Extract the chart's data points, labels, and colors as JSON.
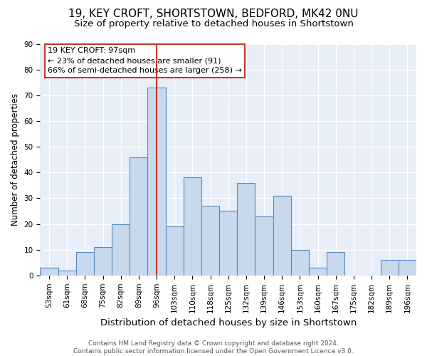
{
  "title1": "19, KEY CROFT, SHORTSTOWN, BEDFORD, MK42 0NU",
  "title2": "Size of property relative to detached houses in Shortstown",
  "xlabel": "Distribution of detached houses by size in Shortstown",
  "ylabel": "Number of detached properties",
  "categories": [
    "53sqm",
    "61sqm",
    "68sqm",
    "75sqm",
    "82sqm",
    "89sqm",
    "96sqm",
    "103sqm",
    "110sqm",
    "118sqm",
    "125sqm",
    "132sqm",
    "139sqm",
    "146sqm",
    "153sqm",
    "160sqm",
    "167sqm",
    "175sqm",
    "182sqm",
    "189sqm",
    "196sqm"
  ],
  "values": [
    3,
    2,
    9,
    11,
    20,
    46,
    73,
    19,
    38,
    27,
    25,
    36,
    23,
    31,
    10,
    3,
    9,
    0,
    0,
    6,
    6
  ],
  "bar_color": "#c8d9ed",
  "bar_edge_color": "#5a8abf",
  "vline_x": 6,
  "vline_color": "#c0392b",
  "annotation_line1": "19 KEY CROFT: 97sqm",
  "annotation_line2": "← 23% of detached houses are smaller (91)",
  "annotation_line3": "66% of semi-detached houses are larger (258) →",
  "annotation_box_edge_color": "#c0392b",
  "ylim": [
    0,
    90
  ],
  "yticks": [
    0,
    10,
    20,
    30,
    40,
    50,
    60,
    70,
    80,
    90
  ],
  "footer": "Contains HM Land Registry data © Crown copyright and database right 2024.\nContains public sector information licensed under the Open Government Licence v3.0.",
  "plot_bg_color": "#e8eef8",
  "title1_fontsize": 11,
  "title2_fontsize": 9.5,
  "xlabel_fontsize": 9.5,
  "ylabel_fontsize": 8.5,
  "tick_fontsize": 7.5,
  "annotation_fontsize": 8,
  "footer_fontsize": 6.5
}
